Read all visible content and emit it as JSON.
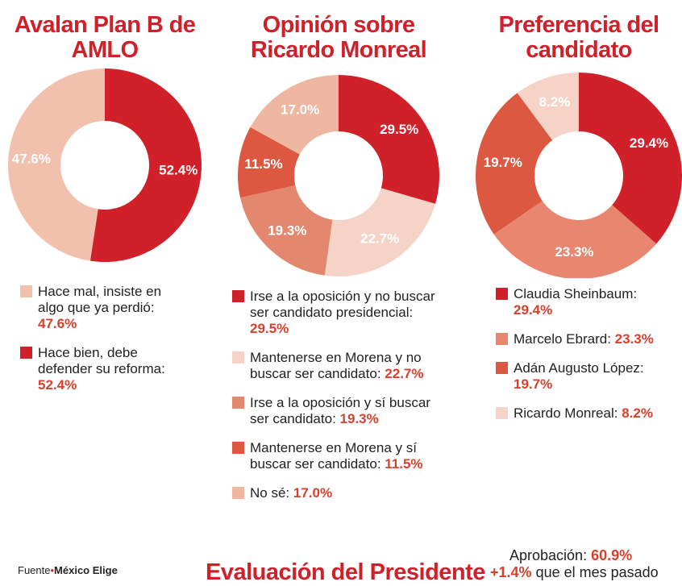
{
  "chart_data": [
    {
      "type": "donut",
      "title": "Avalan Plan B de AMLO",
      "direction": "counterclockwise",
      "categories": [
        "Hace mal, insiste en algo que ya perdió:",
        "Hace bien, debe defender su reforma:"
      ],
      "values": [
        47.6,
        52.4
      ],
      "value_labels": [
        "47.6%",
        "52.4%"
      ],
      "colors": [
        "#f2c1ae",
        "#d0202a"
      ]
    },
    {
      "type": "donut",
      "title": "Opinión sobre Ricardo Monreal",
      "direction": "clockwise",
      "categories": [
        "Irse a la oposición y no buscar ser candidato presidencial:",
        "Mantenerse en Morena y no buscar ser candidato:",
        "Irse a la oposición y sí buscar ser candidato:",
        "Mantenerse en Morena y sí buscar ser candidato:",
        "No sé:"
      ],
      "values": [
        29.5,
        22.7,
        19.3,
        11.5,
        17.0
      ],
      "value_labels": [
        "29.5%",
        "22.7%",
        "19.3%",
        "11.5%",
        "17.0%"
      ],
      "colors": [
        "#d0202a",
        "#f5d4c7",
        "#e4876f",
        "#dc5840",
        "#efb7a1"
      ]
    },
    {
      "type": "donut",
      "title": "Preferencia del candidato",
      "direction": "clockwise",
      "categories": [
        "Claudia Sheinbaum:",
        "Marcelo Ebrard:",
        "Adán Augusto López:",
        "Ricardo Monreal:"
      ],
      "values": [
        29.4,
        23.3,
        19.7,
        8.2
      ],
      "value_labels": [
        "29.4%",
        "23.3%",
        "19.7%",
        "8.2%"
      ],
      "colors": [
        "#d0202a",
        "#e8866f",
        "#dc5840",
        "#f5d4c7"
      ]
    }
  ],
  "footer": {
    "source_label": "Fuente",
    "source": "México Elige"
  },
  "evaluation": {
    "title": "Evaluación del Presidente",
    "label": "Aprobación:",
    "value": "60.9%",
    "change": "+1.4%",
    "change_text": "que el mes pasado"
  }
}
